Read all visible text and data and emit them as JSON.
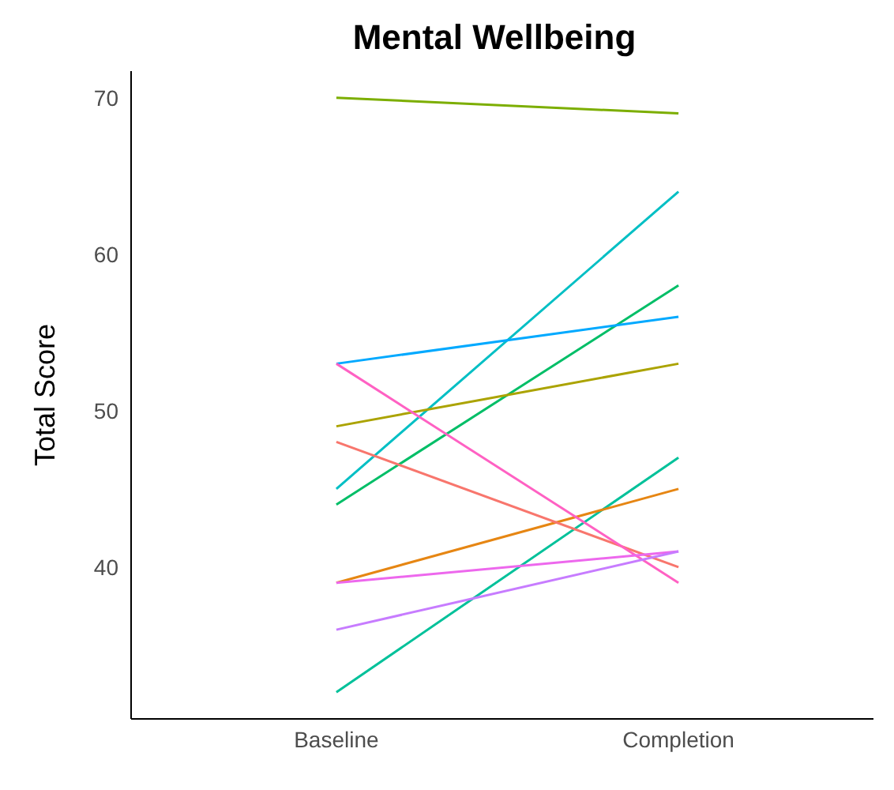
{
  "chart_data": {
    "type": "line",
    "title": "Mental Wellbeing",
    "ylabel": "Total Score",
    "categories": [
      "Baseline",
      "Completion"
    ],
    "series": [
      {
        "color": "#7cae00",
        "values": [
          70,
          69
        ]
      },
      {
        "color": "#00bfc4",
        "values": [
          45,
          64
        ]
      },
      {
        "color": "#00be67",
        "values": [
          44,
          58
        ]
      },
      {
        "color": "#00a9ff",
        "values": [
          53,
          56
        ]
      },
      {
        "color": "#aba300",
        "values": [
          49,
          53
        ]
      },
      {
        "color": "#00c19a",
        "values": [
          32,
          47
        ]
      },
      {
        "color": "#e68613",
        "values": [
          39,
          45
        ]
      },
      {
        "color": "#f8766d",
        "values": [
          48,
          40
        ]
      },
      {
        "color": "#ff61c3",
        "values": [
          53,
          39
        ]
      },
      {
        "color": "#ed68ed",
        "values": [
          39,
          41
        ]
      },
      {
        "color": "#c77cff",
        "values": [
          36,
          41
        ]
      }
    ],
    "ylim": [
      30.3,
      71.7
    ],
    "yticks": [
      40,
      50,
      60,
      70
    ],
    "grid": false,
    "legend": false,
    "marker": "none",
    "line_style": "solid"
  }
}
